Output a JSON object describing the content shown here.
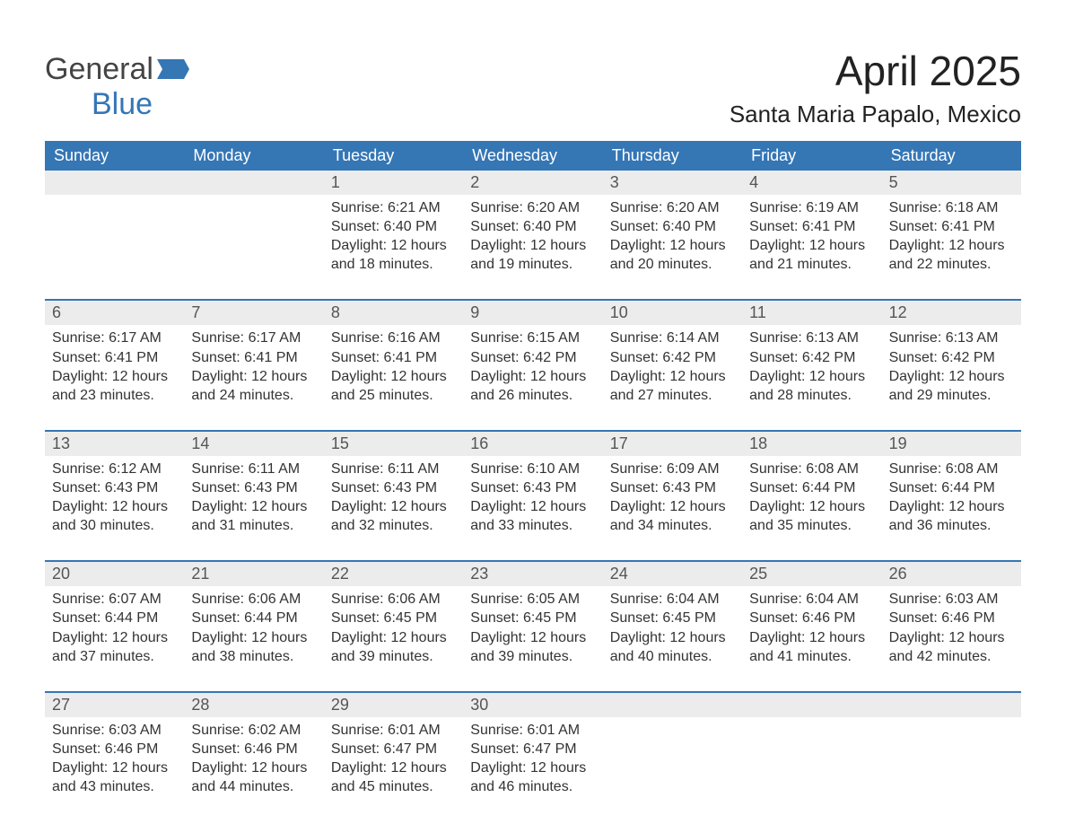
{
  "logo": {
    "text1": "General",
    "text2": "Blue",
    "icon_color": "#3576b5"
  },
  "header": {
    "month_title": "April 2025",
    "location": "Santa Maria Papalo, Mexico"
  },
  "style": {
    "header_bg": "#3576b5",
    "header_fg": "#ffffff",
    "date_band_bg": "#ececec",
    "date_band_fg": "#555555",
    "week_border": "#3576b5",
    "body_fg": "#333333",
    "page_bg": "#ffffff",
    "title_fontsize": 46,
    "location_fontsize": 26,
    "dayheader_fontsize": 18,
    "date_fontsize": 18,
    "body_fontsize": 16
  },
  "day_names": [
    "Sunday",
    "Monday",
    "Tuesday",
    "Wednesday",
    "Thursday",
    "Friday",
    "Saturday"
  ],
  "weeks": [
    [
      {
        "date": "",
        "sunrise": "",
        "sunset": "",
        "daylight": ""
      },
      {
        "date": "",
        "sunrise": "",
        "sunset": "",
        "daylight": ""
      },
      {
        "date": "1",
        "sunrise": "Sunrise: 6:21 AM",
        "sunset": "Sunset: 6:40 PM",
        "daylight": "Daylight: 12 hours and 18 minutes."
      },
      {
        "date": "2",
        "sunrise": "Sunrise: 6:20 AM",
        "sunset": "Sunset: 6:40 PM",
        "daylight": "Daylight: 12 hours and 19 minutes."
      },
      {
        "date": "3",
        "sunrise": "Sunrise: 6:20 AM",
        "sunset": "Sunset: 6:40 PM",
        "daylight": "Daylight: 12 hours and 20 minutes."
      },
      {
        "date": "4",
        "sunrise": "Sunrise: 6:19 AM",
        "sunset": "Sunset: 6:41 PM",
        "daylight": "Daylight: 12 hours and 21 minutes."
      },
      {
        "date": "5",
        "sunrise": "Sunrise: 6:18 AM",
        "sunset": "Sunset: 6:41 PM",
        "daylight": "Daylight: 12 hours and 22 minutes."
      }
    ],
    [
      {
        "date": "6",
        "sunrise": "Sunrise: 6:17 AM",
        "sunset": "Sunset: 6:41 PM",
        "daylight": "Daylight: 12 hours and 23 minutes."
      },
      {
        "date": "7",
        "sunrise": "Sunrise: 6:17 AM",
        "sunset": "Sunset: 6:41 PM",
        "daylight": "Daylight: 12 hours and 24 minutes."
      },
      {
        "date": "8",
        "sunrise": "Sunrise: 6:16 AM",
        "sunset": "Sunset: 6:41 PM",
        "daylight": "Daylight: 12 hours and 25 minutes."
      },
      {
        "date": "9",
        "sunrise": "Sunrise: 6:15 AM",
        "sunset": "Sunset: 6:42 PM",
        "daylight": "Daylight: 12 hours and 26 minutes."
      },
      {
        "date": "10",
        "sunrise": "Sunrise: 6:14 AM",
        "sunset": "Sunset: 6:42 PM",
        "daylight": "Daylight: 12 hours and 27 minutes."
      },
      {
        "date": "11",
        "sunrise": "Sunrise: 6:13 AM",
        "sunset": "Sunset: 6:42 PM",
        "daylight": "Daylight: 12 hours and 28 minutes."
      },
      {
        "date": "12",
        "sunrise": "Sunrise: 6:13 AM",
        "sunset": "Sunset: 6:42 PM",
        "daylight": "Daylight: 12 hours and 29 minutes."
      }
    ],
    [
      {
        "date": "13",
        "sunrise": "Sunrise: 6:12 AM",
        "sunset": "Sunset: 6:43 PM",
        "daylight": "Daylight: 12 hours and 30 minutes."
      },
      {
        "date": "14",
        "sunrise": "Sunrise: 6:11 AM",
        "sunset": "Sunset: 6:43 PM",
        "daylight": "Daylight: 12 hours and 31 minutes."
      },
      {
        "date": "15",
        "sunrise": "Sunrise: 6:11 AM",
        "sunset": "Sunset: 6:43 PM",
        "daylight": "Daylight: 12 hours and 32 minutes."
      },
      {
        "date": "16",
        "sunrise": "Sunrise: 6:10 AM",
        "sunset": "Sunset: 6:43 PM",
        "daylight": "Daylight: 12 hours and 33 minutes."
      },
      {
        "date": "17",
        "sunrise": "Sunrise: 6:09 AM",
        "sunset": "Sunset: 6:43 PM",
        "daylight": "Daylight: 12 hours and 34 minutes."
      },
      {
        "date": "18",
        "sunrise": "Sunrise: 6:08 AM",
        "sunset": "Sunset: 6:44 PM",
        "daylight": "Daylight: 12 hours and 35 minutes."
      },
      {
        "date": "19",
        "sunrise": "Sunrise: 6:08 AM",
        "sunset": "Sunset: 6:44 PM",
        "daylight": "Daylight: 12 hours and 36 minutes."
      }
    ],
    [
      {
        "date": "20",
        "sunrise": "Sunrise: 6:07 AM",
        "sunset": "Sunset: 6:44 PM",
        "daylight": "Daylight: 12 hours and 37 minutes."
      },
      {
        "date": "21",
        "sunrise": "Sunrise: 6:06 AM",
        "sunset": "Sunset: 6:44 PM",
        "daylight": "Daylight: 12 hours and 38 minutes."
      },
      {
        "date": "22",
        "sunrise": "Sunrise: 6:06 AM",
        "sunset": "Sunset: 6:45 PM",
        "daylight": "Daylight: 12 hours and 39 minutes."
      },
      {
        "date": "23",
        "sunrise": "Sunrise: 6:05 AM",
        "sunset": "Sunset: 6:45 PM",
        "daylight": "Daylight: 12 hours and 39 minutes."
      },
      {
        "date": "24",
        "sunrise": "Sunrise: 6:04 AM",
        "sunset": "Sunset: 6:45 PM",
        "daylight": "Daylight: 12 hours and 40 minutes."
      },
      {
        "date": "25",
        "sunrise": "Sunrise: 6:04 AM",
        "sunset": "Sunset: 6:46 PM",
        "daylight": "Daylight: 12 hours and 41 minutes."
      },
      {
        "date": "26",
        "sunrise": "Sunrise: 6:03 AM",
        "sunset": "Sunset: 6:46 PM",
        "daylight": "Daylight: 12 hours and 42 minutes."
      }
    ],
    [
      {
        "date": "27",
        "sunrise": "Sunrise: 6:03 AM",
        "sunset": "Sunset: 6:46 PM",
        "daylight": "Daylight: 12 hours and 43 minutes."
      },
      {
        "date": "28",
        "sunrise": "Sunrise: 6:02 AM",
        "sunset": "Sunset: 6:46 PM",
        "daylight": "Daylight: 12 hours and 44 minutes."
      },
      {
        "date": "29",
        "sunrise": "Sunrise: 6:01 AM",
        "sunset": "Sunset: 6:47 PM",
        "daylight": "Daylight: 12 hours and 45 minutes."
      },
      {
        "date": "30",
        "sunrise": "Sunrise: 6:01 AM",
        "sunset": "Sunset: 6:47 PM",
        "daylight": "Daylight: 12 hours and 46 minutes."
      },
      {
        "date": "",
        "sunrise": "",
        "sunset": "",
        "daylight": ""
      },
      {
        "date": "",
        "sunrise": "",
        "sunset": "",
        "daylight": ""
      },
      {
        "date": "",
        "sunrise": "",
        "sunset": "",
        "daylight": ""
      }
    ]
  ]
}
